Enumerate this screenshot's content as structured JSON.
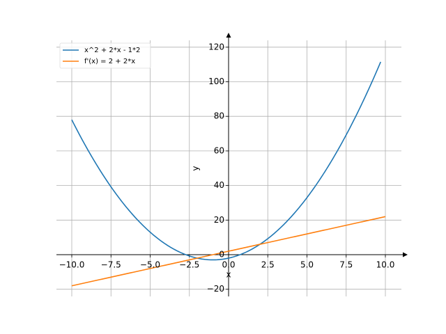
{
  "chart_data": {
    "type": "line",
    "title": "",
    "xlabel": "x",
    "ylabel": "y",
    "xlim": [
      -10.5,
      11.0
    ],
    "ylim": [
      -25,
      128
    ],
    "grid": true,
    "legend_position": "top-left",
    "x_ticks": [
      -10.0,
      -7.5,
      -5.0,
      -2.5,
      0.0,
      2.5,
      5.0,
      7.5,
      10.0
    ],
    "x_tick_labels": [
      "−10.0",
      "−7.5",
      "−5.0",
      "−2.5",
      "0.0",
      "2.5",
      "5.0",
      "7.5",
      "10.0"
    ],
    "y_ticks": [
      -20,
      0,
      20,
      40,
      60,
      80,
      100,
      120
    ],
    "y_tick_labels": [
      "−20",
      "0",
      "20",
      "40",
      "60",
      "80",
      "100",
      "120"
    ],
    "series": [
      {
        "name": "x^2 + 2*x - 1*2",
        "color": "#1f77b4",
        "formula": "x^2 + 2*x - 2",
        "x_range": [
          -10.0,
          9.7
        ]
      },
      {
        "name": "f'(x) = 2 + 2*x",
        "color": "#ff7f0e",
        "formula": "2 + 2*x",
        "x_range": [
          -10.0,
          10.0
        ]
      }
    ]
  }
}
